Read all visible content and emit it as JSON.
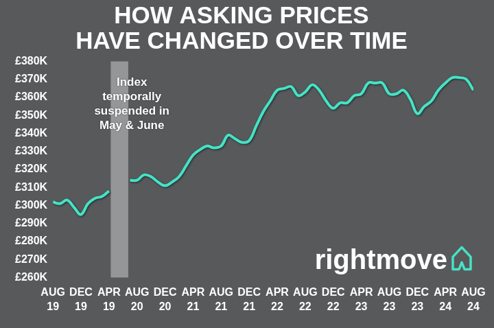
{
  "chart_data": {
    "type": "line",
    "title": "HOW ASKING PRICES HAVE CHANGED OVER TIME",
    "annotation": "Index temporally suspended in May & June",
    "brand": "rightmove",
    "categories": [
      "AUG 19",
      null,
      null,
      null,
      "DEC 19",
      null,
      null,
      null,
      "APR 19",
      null,
      null,
      null,
      "AUG 20",
      null,
      null,
      null,
      "DEC 20",
      null,
      null,
      null,
      "APR 21",
      null,
      null,
      null,
      "AUG 21",
      null,
      null,
      null,
      "DEC 21",
      null,
      null,
      null,
      "APR 22",
      null,
      null,
      null,
      "AUG 22",
      null,
      null,
      null,
      "DEC 22",
      null,
      null,
      null,
      "APR 23",
      null,
      null,
      null,
      "AUG 23",
      null,
      null,
      null,
      "DEC 23",
      null,
      null,
      null,
      "APR 24",
      null,
      null,
      null,
      "AUG 24"
    ],
    "values": [
      302000,
      301000,
      303000,
      299000,
      295000,
      301000,
      304000,
      305000,
      308000,
      null,
      null,
      314000,
      314000,
      317000,
      316000,
      313000,
      311000,
      313000,
      316000,
      322000,
      328000,
      331000,
      333000,
      332000,
      333000,
      339000,
      337000,
      335000,
      336000,
      344000,
      352000,
      358000,
      364000,
      365000,
      366000,
      361000,
      363000,
      367000,
      364000,
      358000,
      354000,
      357000,
      357000,
      361000,
      362000,
      368000,
      368000,
      368000,
      362000,
      362000,
      364000,
      359000,
      351000,
      355000,
      358000,
      364000,
      368000,
      371000,
      371000,
      370000,
      364000
    ],
    "color": "#45e3c6",
    "ylim": [
      260000,
      380000
    ],
    "yticks": [
      {
        "value": 260000,
        "label": "£260K"
      },
      {
        "value": 270000,
        "label": "£270K"
      },
      {
        "value": 280000,
        "label": "£280K"
      },
      {
        "value": 290000,
        "label": "£290K"
      },
      {
        "value": 300000,
        "label": "£300K"
      },
      {
        "value": 310000,
        "label": "£310K"
      },
      {
        "value": 320000,
        "label": "£320K"
      },
      {
        "value": 330000,
        "label": "£330K"
      },
      {
        "value": 340000,
        "label": "£340K"
      },
      {
        "value": 350000,
        "label": "£350K"
      },
      {
        "value": 360000,
        "label": "£360K"
      },
      {
        "value": 370000,
        "label": "£370K"
      },
      {
        "value": 380000,
        "label": "£380K"
      }
    ],
    "grid": false
  }
}
